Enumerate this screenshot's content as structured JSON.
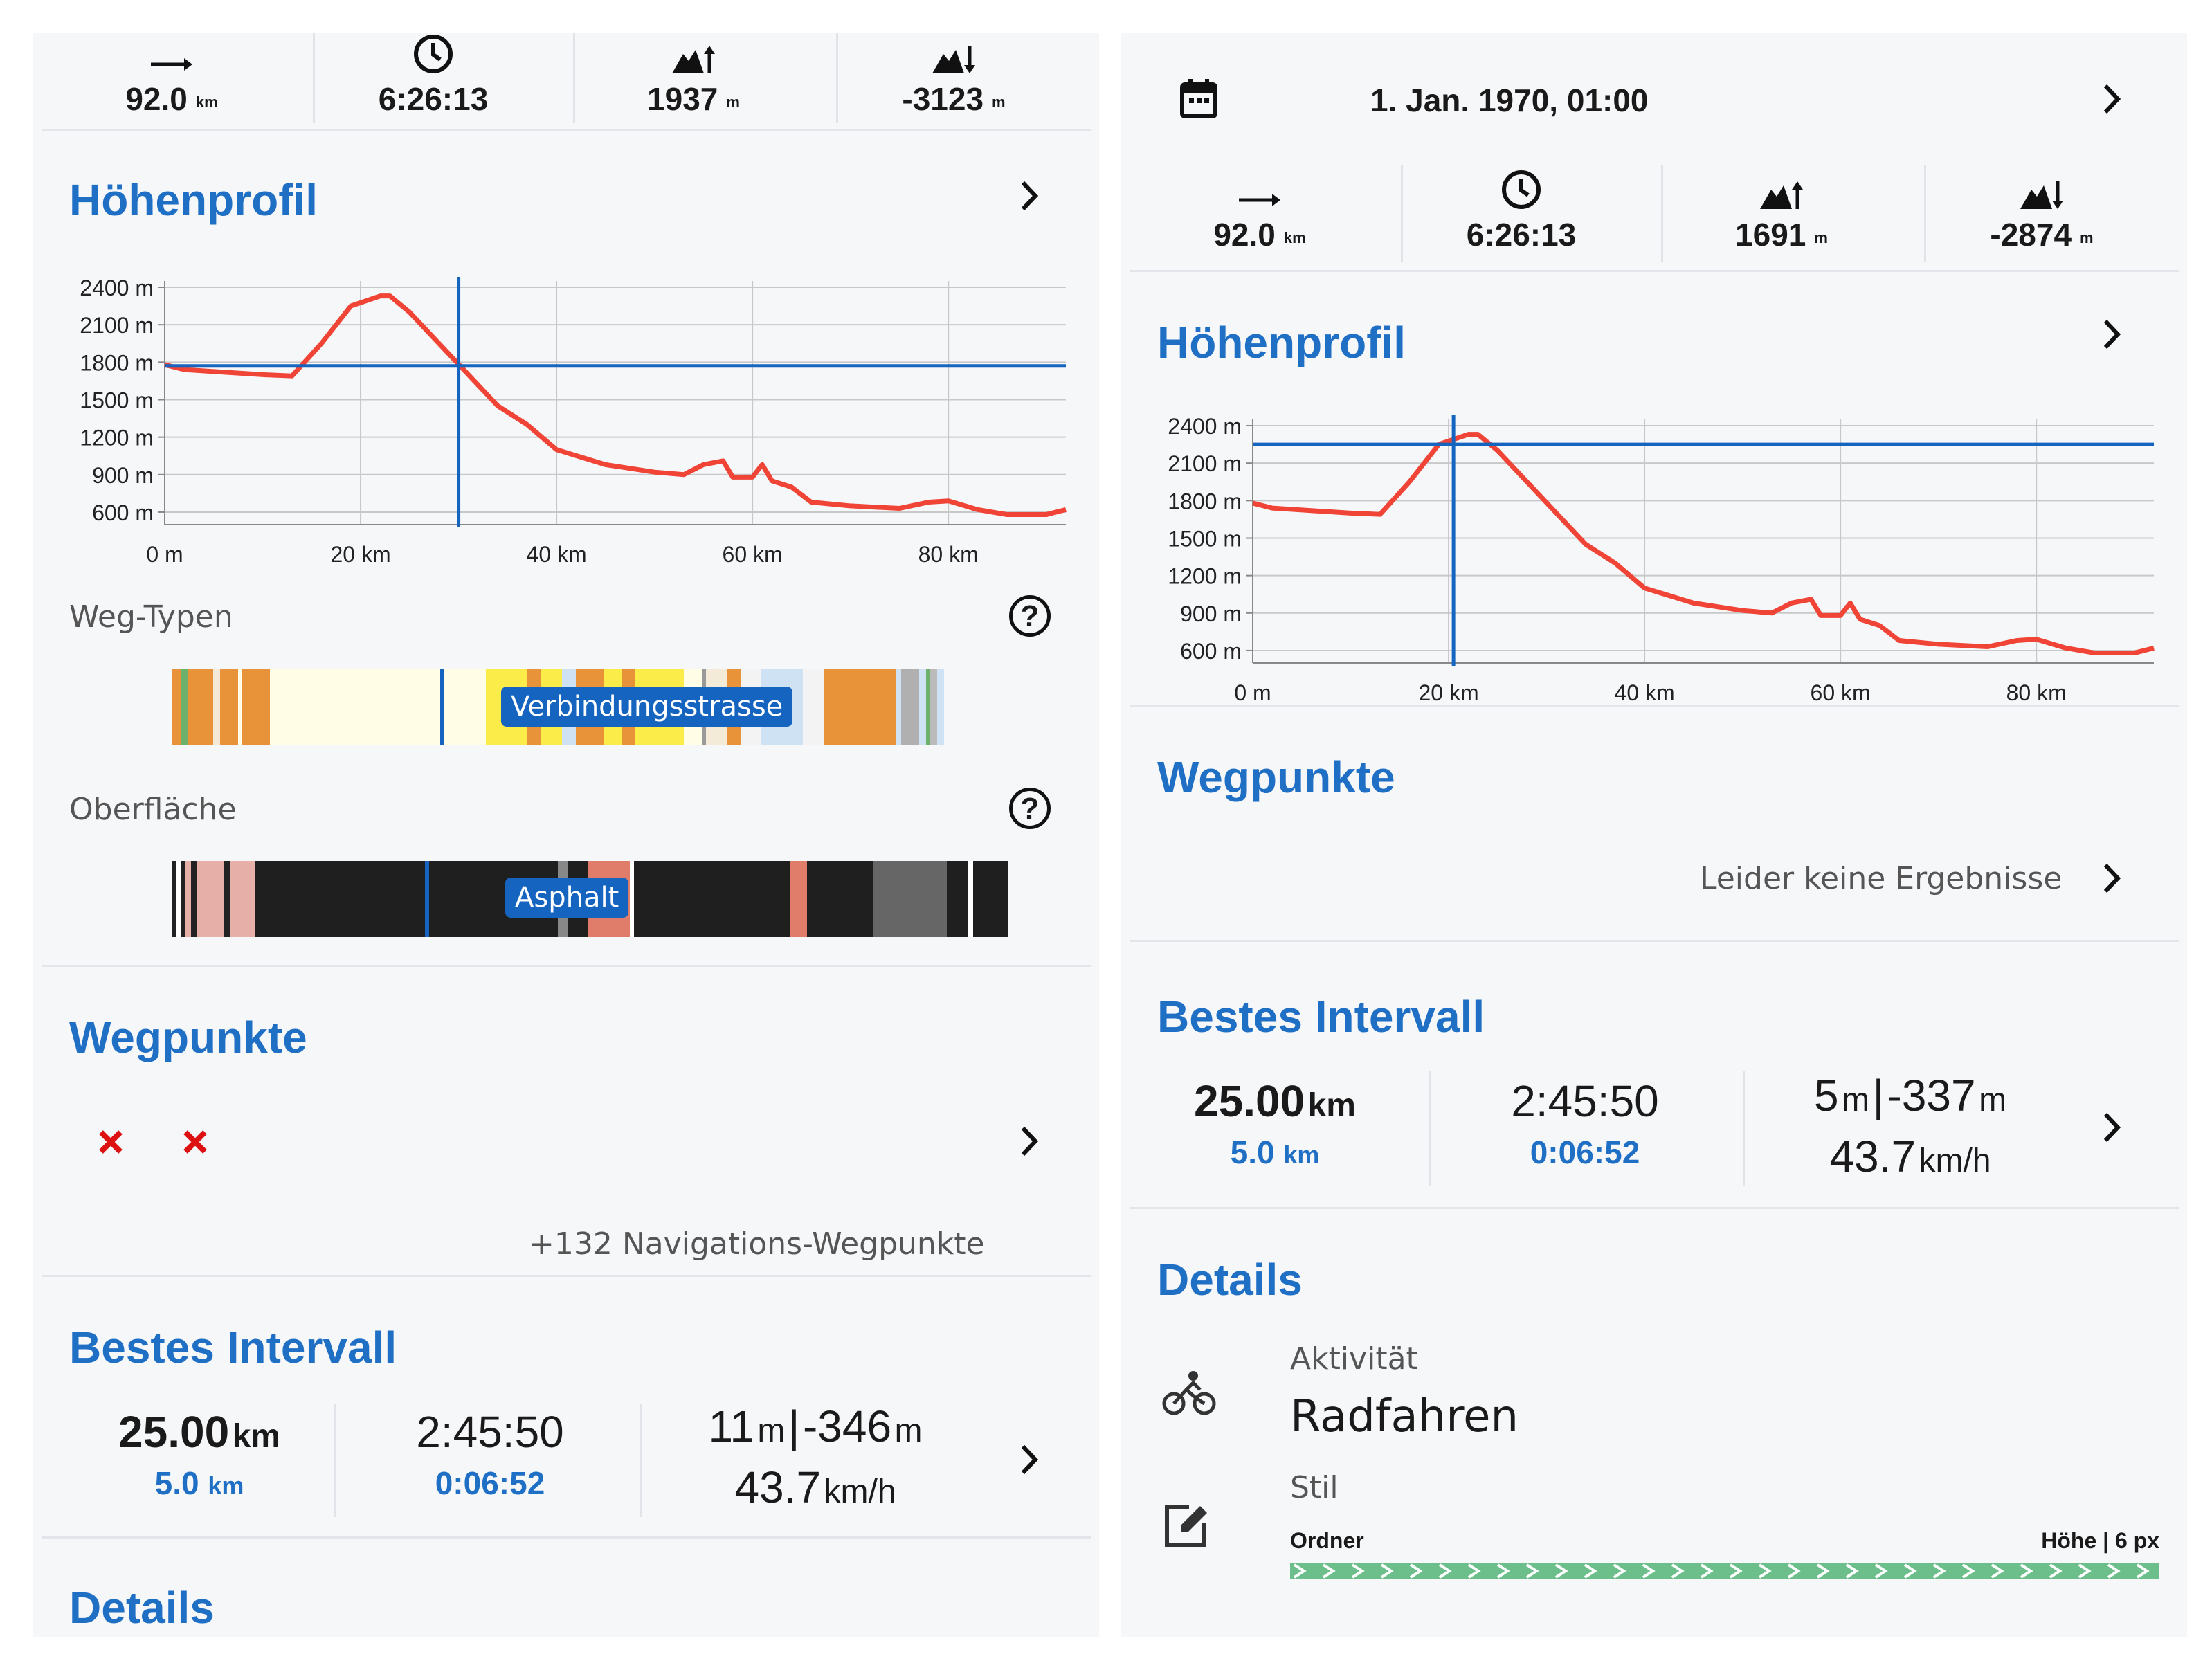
{
  "left": {
    "stats": [
      {
        "icon": "distance-arrow-icon",
        "value": "92.0",
        "unit": "km"
      },
      {
        "icon": "clock-icon",
        "value": "6:26:13",
        "unit": ""
      },
      {
        "icon": "ascent-icon",
        "value": "1937",
        "unit": "m"
      },
      {
        "icon": "descent-icon",
        "value": "-3123",
        "unit": "m"
      }
    ],
    "elevation_title": "Höhenprofil",
    "weg_typen_label": "Weg-Typen",
    "weg_typen_tag": "Verbindungsstrasse",
    "oberflaeche_label": "Oberfläche",
    "oberflaeche_tag": "Asphalt",
    "wegpunkte_title": "Wegpunkte",
    "nav_waypoints": "+132 Navigations-Wegpunkte",
    "bestes_title": "Bestes Intervall",
    "interval": {
      "dist": "25.00",
      "dist_unit": "km",
      "dist_sub": "5.0",
      "dist_sub_unit": "km",
      "time": "2:45:50",
      "time_sub": "0:06:52",
      "up": "11",
      "up_unit": "m",
      "down": "-346",
      "down_unit": "m",
      "speed": "43.7",
      "speed_unit": "km/h"
    },
    "details_title": "Details"
  },
  "right": {
    "date": "1. Jan. 1970, 01:00",
    "stats": [
      {
        "icon": "distance-arrow-icon",
        "value": "92.0",
        "unit": "km"
      },
      {
        "icon": "clock-icon",
        "value": "6:26:13",
        "unit": ""
      },
      {
        "icon": "ascent-icon",
        "value": "1691",
        "unit": "m"
      },
      {
        "icon": "descent-icon",
        "value": "-2874",
        "unit": "m"
      }
    ],
    "elevation_title": "Höhenprofil",
    "wegpunkte_title": "Wegpunkte",
    "no_results": "Leider keine Ergebnisse",
    "bestes_title": "Bestes Intervall",
    "interval": {
      "dist": "25.00",
      "dist_unit": "km",
      "dist_sub": "5.0",
      "dist_sub_unit": "km",
      "time": "2:45:50",
      "time_sub": "0:06:52",
      "up": "5",
      "up_unit": "m",
      "down": "-337",
      "down_unit": "m",
      "speed": "43.7",
      "speed_unit": "km/h"
    },
    "details_title": "Details",
    "aktivitaet_label": "Aktivität",
    "aktivitaet_value": "Radfahren",
    "stil_label": "Stil",
    "ordner_label": "Ordner",
    "hoehe_label": "Höhe | 6 px"
  },
  "chart_data": [
    {
      "type": "line",
      "title": "Höhenprofil",
      "y_ticks": [
        "2400 m",
        "2100 m",
        "1800 m",
        "1500 m",
        "1200 m",
        "900 m",
        "600 m"
      ],
      "x_ticks": [
        "0 m",
        "20 km",
        "40 km",
        "60 km",
        "80 km"
      ],
      "xlim": [
        0,
        92
      ],
      "ylim": [
        500,
        2450
      ],
      "cursor_x_km": 30,
      "cursor_y_m": 1770,
      "x": [
        0,
        2,
        6,
        10,
        13,
        16,
        19,
        22,
        23,
        25,
        28,
        31,
        34,
        37,
        40,
        45,
        50,
        53,
        55,
        57,
        58,
        60,
        61,
        62,
        64,
        66,
        70,
        75,
        78,
        80,
        83,
        86,
        90,
        92
      ],
      "y": [
        1780,
        1740,
        1720,
        1700,
        1690,
        1950,
        2250,
        2330,
        2330,
        2200,
        1950,
        1700,
        1450,
        1300,
        1100,
        980,
        920,
        900,
        980,
        1010,
        880,
        880,
        980,
        850,
        800,
        680,
        650,
        630,
        680,
        690,
        620,
        580,
        580,
        620
      ]
    },
    {
      "type": "line",
      "title": "Höhenprofil",
      "y_ticks": [
        "2400 m",
        "2100 m",
        "1800 m",
        "1500 m",
        "1200 m",
        "900 m",
        "600 m"
      ],
      "x_ticks": [
        "0 m",
        "20 km",
        "40 km",
        "60 km",
        "80 km"
      ],
      "xlim": [
        0,
        92
      ],
      "ylim": [
        500,
        2450
      ],
      "cursor_x_km": 20.5,
      "cursor_y_m": 2250,
      "x": [
        0,
        2,
        6,
        10,
        13,
        16,
        19,
        22,
        23,
        25,
        28,
        31,
        34,
        37,
        40,
        45,
        50,
        53,
        55,
        57,
        58,
        60,
        61,
        62,
        64,
        66,
        70,
        75,
        78,
        80,
        83,
        86,
        90,
        92
      ],
      "y": [
        1780,
        1740,
        1720,
        1700,
        1690,
        1950,
        2250,
        2330,
        2330,
        2200,
        1950,
        1700,
        1450,
        1300,
        1100,
        980,
        920,
        900,
        980,
        1010,
        880,
        880,
        980,
        850,
        800,
        680,
        650,
        630,
        680,
        690,
        620,
        580,
        580,
        620
      ]
    }
  ]
}
